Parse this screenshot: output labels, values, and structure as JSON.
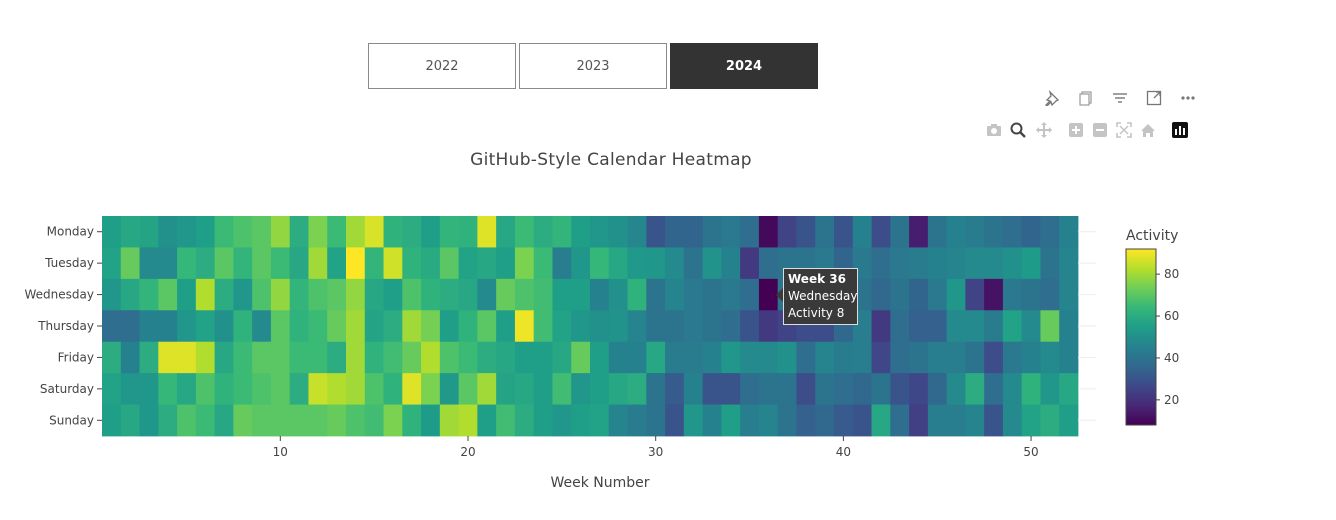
{
  "year_tabs": [
    {
      "label": "2022",
      "active": false
    },
    {
      "label": "2023",
      "active": false
    },
    {
      "label": "2024",
      "active": true
    }
  ],
  "toolbar": {
    "row1": [
      "pin-icon",
      "copy-icon",
      "filter-icon",
      "expand-icon",
      "more-icon"
    ],
    "row2": [
      "camera-icon",
      "zoom-icon",
      "pan-icon",
      "zoom-in-icon",
      "zoom-out-icon",
      "autoscale-icon",
      "reset-axes-icon",
      "plotly-logo-icon"
    ]
  },
  "tooltip": {
    "week_line": "Week 36",
    "day_line": "Wednesday",
    "activity_line": "Activity 8"
  },
  "chart_data": {
    "type": "heatmap",
    "title": "GitHub-Style Calendar Heatmap",
    "xlabel": "Week Number",
    "ylabel": "",
    "x_ticks": [
      10,
      20,
      30,
      40,
      50
    ],
    "xlim": [
      0.5,
      52.5
    ],
    "y_categories": [
      "Monday",
      "Tuesday",
      "Wednesday",
      "Thursday",
      "Friday",
      "Saturday",
      "Sunday"
    ],
    "weeks": [
      1,
      2,
      3,
      4,
      5,
      6,
      7,
      8,
      9,
      10,
      11,
      12,
      13,
      14,
      15,
      16,
      17,
      18,
      19,
      20,
      21,
      22,
      23,
      24,
      25,
      26,
      27,
      28,
      29,
      30,
      31,
      32,
      33,
      34,
      35,
      36,
      37,
      38,
      39,
      40,
      41,
      42,
      43,
      44,
      45,
      46,
      47,
      48,
      49,
      50,
      51,
      52
    ],
    "colorbar": {
      "title": "Activity",
      "ticks": [
        20,
        40,
        60,
        80
      ],
      "range": [
        8,
        92
      ],
      "colorscale": "Viridis"
    },
    "z": [
      [
        55,
        58,
        57,
        50,
        52,
        55,
        65,
        68,
        70,
        78,
        60,
        75,
        65,
        80,
        87,
        62,
        60,
        55,
        63,
        62,
        88,
        58,
        65,
        60,
        63,
        55,
        52,
        50,
        47,
        30,
        35,
        35,
        40,
        42,
        38,
        10,
        25,
        30,
        40,
        30,
        45,
        28,
        40,
        15,
        40,
        45,
        43,
        40,
        38,
        35,
        38,
        45
      ],
      [
        56,
        72,
        48,
        48,
        64,
        60,
        70,
        63,
        70,
        65,
        58,
        80,
        56,
        92,
        63,
        86,
        62,
        59,
        70,
        56,
        58,
        55,
        75,
        65,
        44,
        52,
        64,
        58,
        53,
        52,
        48,
        40,
        51,
        45,
        22,
        38,
        40,
        40,
        42,
        35,
        42,
        38,
        42,
        43,
        45,
        46,
        48,
        48,
        50,
        54,
        40,
        46
      ],
      [
        52,
        58,
        63,
        70,
        55,
        82,
        60,
        52,
        68,
        78,
        63,
        68,
        70,
        78,
        58,
        55,
        68,
        62,
        60,
        58,
        48,
        72,
        68,
        66,
        55,
        55,
        45,
        50,
        62,
        40,
        46,
        42,
        40,
        42,
        38,
        8,
        40,
        42,
        48,
        42,
        40,
        36,
        40,
        35,
        42,
        52,
        25,
        12,
        42,
        40,
        38,
        46
      ],
      [
        38,
        38,
        45,
        45,
        52,
        56,
        50,
        62,
        48,
        70,
        62,
        65,
        72,
        80,
        57,
        60,
        80,
        74,
        55,
        62,
        70,
        55,
        90,
        66,
        56,
        52,
        50,
        51,
        46,
        40,
        40,
        42,
        40,
        38,
        30,
        22,
        25,
        28,
        28,
        36,
        44,
        22,
        38,
        34,
        34,
        48,
        48,
        43,
        56,
        48,
        72,
        45
      ],
      [
        60,
        45,
        60,
        88,
        88,
        82,
        58,
        65,
        70,
        70,
        65,
        65,
        60,
        80,
        62,
        66,
        72,
        82,
        68,
        65,
        60,
        58,
        55,
        55,
        58,
        72,
        55,
        45,
        45,
        58,
        43,
        43,
        45,
        52,
        48,
        48,
        50,
        38,
        46,
        43,
        44,
        26,
        38,
        40,
        44,
        44,
        40,
        28,
        42,
        45,
        48,
        45
      ],
      [
        56,
        52,
        52,
        64,
        58,
        68,
        62,
        65,
        68,
        70,
        60,
        85,
        82,
        80,
        68,
        62,
        88,
        75,
        53,
        70,
        80,
        57,
        58,
        55,
        66,
        52,
        55,
        58,
        60,
        40,
        32,
        45,
        30,
        30,
        38,
        40,
        40,
        28,
        40,
        38,
        36,
        40,
        30,
        26,
        36,
        48,
        60,
        38,
        48,
        62,
        52,
        58
      ],
      [
        55,
        58,
        52,
        60,
        68,
        65,
        58,
        72,
        70,
        70,
        70,
        70,
        72,
        68,
        66,
        75,
        62,
        54,
        80,
        82,
        55,
        66,
        60,
        55,
        52,
        55,
        56,
        46,
        43,
        40,
        30,
        52,
        45,
        55,
        44,
        46,
        40,
        34,
        36,
        32,
        30,
        58,
        38,
        24,
        44,
        44,
        46,
        30,
        48,
        56,
        60,
        55
      ]
    ]
  }
}
